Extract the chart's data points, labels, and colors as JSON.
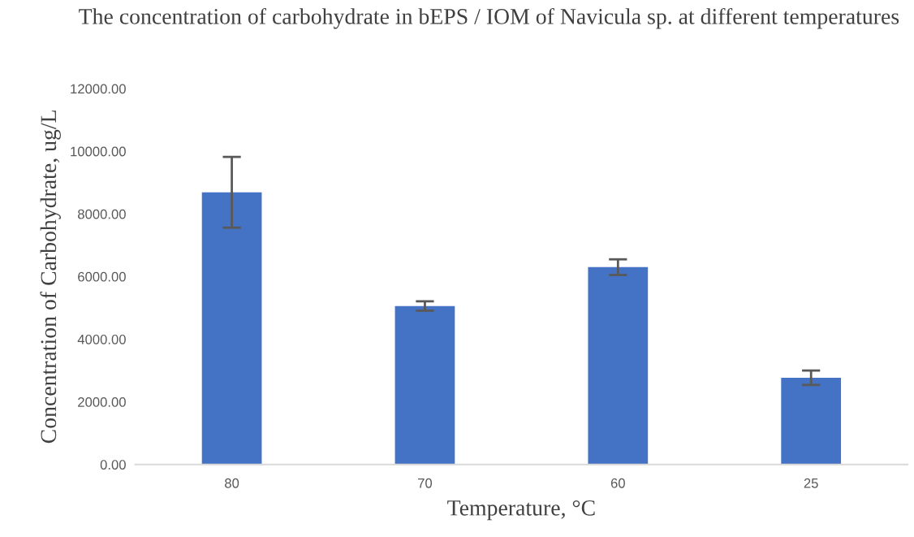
{
  "chart_data": {
    "type": "bar",
    "title": "The concentration of carbohydrate in bEPS / IOM of Navicula sp. at different temperatures",
    "xlabel": "Temperature, °C",
    "ylabel": "Concentration of Carbohydrate, ug/L",
    "categories": [
      "80",
      "70",
      "60",
      "25"
    ],
    "values": [
      8690,
      5060,
      6300,
      2770
    ],
    "errors": [
      1130,
      150,
      250,
      230
    ],
    "color": "#4472c4",
    "ylim": [
      0,
      12000
    ],
    "yticks": [
      {
        "value": 0,
        "label": "0.00"
      },
      {
        "value": 2000,
        "label": "2000.00"
      },
      {
        "value": 4000,
        "label": "4000.00"
      },
      {
        "value": 6000,
        "label": "6000.00"
      },
      {
        "value": 8000,
        "label": "8000.00"
      },
      {
        "value": 10000,
        "label": "10000.00"
      },
      {
        "value": 12000,
        "label": "12000.00"
      }
    ],
    "grid": false
  }
}
